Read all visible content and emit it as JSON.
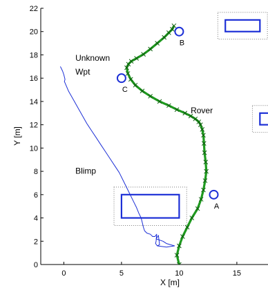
{
  "chart_data": {
    "type": "line",
    "title": "",
    "xlabel": "X [m]",
    "ylabel": "Y [m]",
    "xlim": [
      -2,
      17.7
    ],
    "ylim": [
      0,
      22
    ],
    "xticks": [
      0,
      5,
      10,
      15
    ],
    "yticks": [
      0,
      2,
      4,
      6,
      8,
      10,
      12,
      14,
      16,
      18,
      20,
      22
    ],
    "grid": false,
    "legend": "none",
    "colors": {
      "rover": "#1f9a1f",
      "rover_marker": "#0f5e0f",
      "blimp": "#1c2fd6",
      "obstacle": "#1c2fd6",
      "waypoint": "#1c2fd6",
      "dotted_box": "#777777"
    },
    "series": [
      {
        "key": "rover",
        "name": "Rover",
        "style": "line-x-markers",
        "x": [
          10.0,
          9.8,
          10.0,
          10.3,
          10.7,
          11.1,
          11.6,
          11.9,
          12.1,
          12.25,
          12.35,
          12.3,
          12.2,
          12.15,
          12.1,
          12.0,
          11.85,
          11.7,
          11.4,
          11.0,
          10.5,
          9.8,
          9.1,
          8.3,
          7.5,
          6.8,
          6.2,
          5.8,
          5.55,
          5.45,
          5.6,
          5.85,
          6.3,
          6.9,
          7.5,
          8.1,
          8.7,
          9.1,
          9.4,
          9.55
        ],
        "y": [
          0.0,
          0.8,
          1.6,
          2.4,
          3.2,
          4.0,
          4.8,
          5.6,
          6.4,
          7.2,
          8.0,
          8.8,
          9.6,
          10.4,
          11.1,
          11.6,
          12.0,
          12.25,
          12.5,
          12.75,
          13.0,
          13.3,
          13.65,
          14.0,
          14.45,
          14.9,
          15.4,
          15.9,
          16.4,
          16.9,
          17.2,
          17.45,
          17.7,
          18.05,
          18.5,
          19.0,
          19.5,
          19.9,
          20.2,
          20.5
        ]
      },
      {
        "key": "blimp",
        "name": "Blimp",
        "style": "line",
        "x": [
          -0.3,
          -0.1,
          0.0,
          0.1,
          0.05,
          0.1,
          0.4,
          0.8,
          1.2,
          1.6,
          2.0,
          2.4,
          2.8,
          3.2,
          3.6,
          4.0,
          4.4,
          4.8,
          5.1,
          5.4,
          5.7,
          6.0,
          6.3,
          6.5,
          6.7,
          6.8,
          6.9,
          7.0,
          7.2,
          7.5,
          7.6,
          7.7,
          7.9,
          8.05,
          8.0,
          7.95,
          8.1,
          8.3,
          8.2,
          8.0,
          8.6,
          8.9,
          9.6,
          8.9,
          8.1
        ],
        "y": [
          17.0,
          16.6,
          16.3,
          15.9,
          15.7,
          15.6,
          14.9,
          14.2,
          13.5,
          12.8,
          12.1,
          11.5,
          10.9,
          10.3,
          9.7,
          9.1,
          8.5,
          7.9,
          7.3,
          6.7,
          6.1,
          5.5,
          4.9,
          4.4,
          4.0,
          3.6,
          3.2,
          2.9,
          2.7,
          2.6,
          2.5,
          2.4,
          2.4,
          2.6,
          2.0,
          1.8,
          1.6,
          1.7,
          2.5,
          2.2,
          2.0,
          1.8,
          1.6,
          1.5,
          1.6
        ]
      }
    ],
    "waypoints": [
      {
        "label": "A",
        "x": 13.0,
        "y": 6.0
      },
      {
        "label": "B",
        "x": 10.0,
        "y": 20.0
      },
      {
        "label": "C",
        "x": 5.0,
        "y": 16.0
      }
    ],
    "obstacles": [
      {
        "x0": 5.0,
        "x1": 10.0,
        "y0": 4.0,
        "y1": 6.0,
        "pad": 0.65
      },
      {
        "x0": 14.0,
        "x1": 17.0,
        "y0": 20.0,
        "y1": 21.0,
        "pad": 0.65
      },
      {
        "x0": 17.0,
        "x1": 19.0,
        "y0": 12.0,
        "y1": 13.0,
        "pad": 0.65
      }
    ],
    "annotations": [
      {
        "key": "unknown1",
        "text": "Unknown",
        "x": 1.0,
        "y": 17.5
      },
      {
        "key": "unknown2",
        "text": "Wpt",
        "x": 1.0,
        "y": 16.3
      },
      {
        "key": "rover",
        "text": "Rover",
        "x": 11.0,
        "y": 13.0
      },
      {
        "key": "blimp",
        "text": "Blimp",
        "x": 1.0,
        "y": 7.8
      }
    ]
  }
}
